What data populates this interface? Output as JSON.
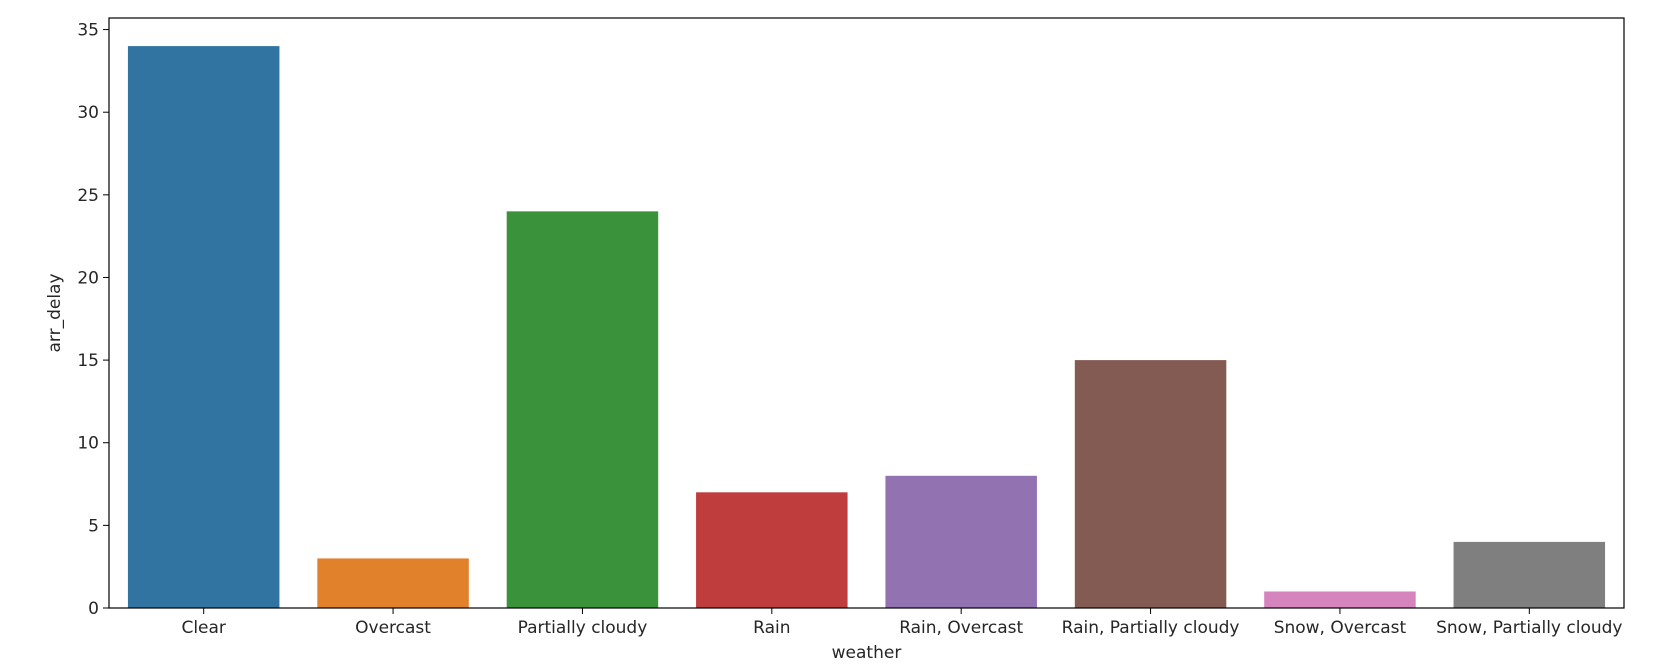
{
  "chart_data": {
    "type": "bar",
    "title": "",
    "xlabel": "weather",
    "ylabel": "arr_delay",
    "categories": [
      "Clear",
      "Overcast",
      "Partially cloudy",
      "Rain",
      "Rain, Overcast",
      "Rain, Partially cloudy",
      "Snow, Overcast",
      "Snow, Partially cloudy"
    ],
    "values": [
      34,
      3,
      24,
      7,
      8,
      15,
      1,
      4
    ],
    "colors": [
      "#3274a1",
      "#e1812c",
      "#3a923a",
      "#c03d3e",
      "#9372b2",
      "#845b53",
      "#d684bd",
      "#7f7f7f"
    ],
    "ylim": [
      0,
      35.7
    ],
    "yticks": [
      0,
      5,
      10,
      15,
      20,
      25,
      30,
      35
    ],
    "grid": false,
    "legend": "none"
  }
}
